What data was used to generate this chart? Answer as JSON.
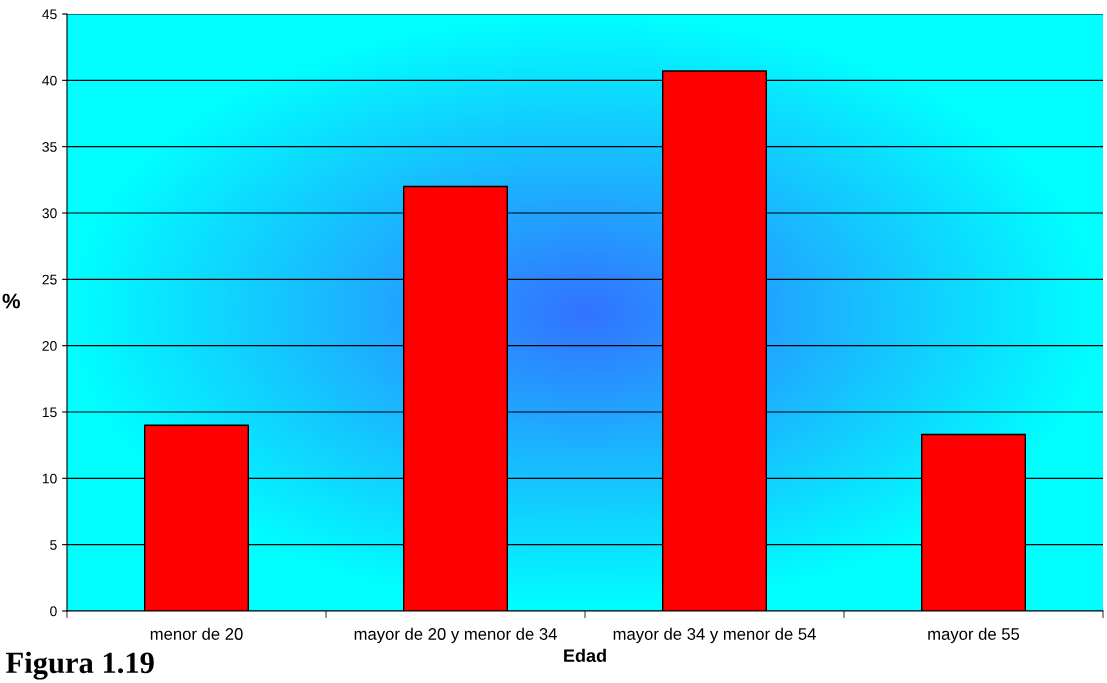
{
  "chart_data": {
    "type": "bar",
    "xlabel": "Edad",
    "ylabel": "%",
    "categories": [
      "menor de 20",
      "mayor de 20 y menor de 34",
      "mayor de 34 y menor de 54",
      "mayor de 55"
    ],
    "values": [
      14.0,
      32.0,
      40.7,
      13.3
    ],
    "color": "#ff0000",
    "ylim": [
      0,
      45
    ],
    "yticks": [
      0,
      5,
      10,
      15,
      20,
      25,
      30,
      35,
      40,
      45
    ],
    "grid": "y",
    "annotations": [
      "Figura 1.19"
    ]
  }
}
